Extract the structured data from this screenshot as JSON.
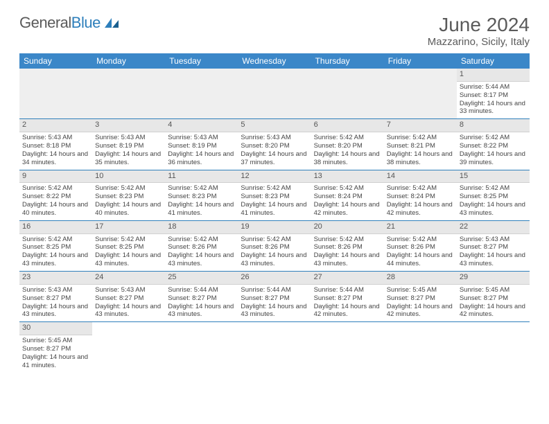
{
  "logo": {
    "text_general": "General",
    "text_blue": "Blue"
  },
  "title": "June 2024",
  "location": "Mazzarino, Sicily, Italy",
  "weekdays": [
    "Sunday",
    "Monday",
    "Tuesday",
    "Wednesday",
    "Thursday",
    "Friday",
    "Saturday"
  ],
  "colors": {
    "header_bg": "#3b87c8",
    "header_fg": "#ffffff",
    "accent": "#2e7fbb",
    "daynum_bg": "#e7e7e7",
    "text": "#444"
  },
  "first_weekday_index": 6,
  "days": [
    {
      "n": 1,
      "sunrise": "5:44 AM",
      "sunset": "8:17 PM",
      "daylight": "14 hours and 33 minutes."
    },
    {
      "n": 2,
      "sunrise": "5:43 AM",
      "sunset": "8:18 PM",
      "daylight": "14 hours and 34 minutes."
    },
    {
      "n": 3,
      "sunrise": "5:43 AM",
      "sunset": "8:19 PM",
      "daylight": "14 hours and 35 minutes."
    },
    {
      "n": 4,
      "sunrise": "5:43 AM",
      "sunset": "8:19 PM",
      "daylight": "14 hours and 36 minutes."
    },
    {
      "n": 5,
      "sunrise": "5:43 AM",
      "sunset": "8:20 PM",
      "daylight": "14 hours and 37 minutes."
    },
    {
      "n": 6,
      "sunrise": "5:42 AM",
      "sunset": "8:20 PM",
      "daylight": "14 hours and 38 minutes."
    },
    {
      "n": 7,
      "sunrise": "5:42 AM",
      "sunset": "8:21 PM",
      "daylight": "14 hours and 38 minutes."
    },
    {
      "n": 8,
      "sunrise": "5:42 AM",
      "sunset": "8:22 PM",
      "daylight": "14 hours and 39 minutes."
    },
    {
      "n": 9,
      "sunrise": "5:42 AM",
      "sunset": "8:22 PM",
      "daylight": "14 hours and 40 minutes."
    },
    {
      "n": 10,
      "sunrise": "5:42 AM",
      "sunset": "8:23 PM",
      "daylight": "14 hours and 40 minutes."
    },
    {
      "n": 11,
      "sunrise": "5:42 AM",
      "sunset": "8:23 PM",
      "daylight": "14 hours and 41 minutes."
    },
    {
      "n": 12,
      "sunrise": "5:42 AM",
      "sunset": "8:23 PM",
      "daylight": "14 hours and 41 minutes."
    },
    {
      "n": 13,
      "sunrise": "5:42 AM",
      "sunset": "8:24 PM",
      "daylight": "14 hours and 42 minutes."
    },
    {
      "n": 14,
      "sunrise": "5:42 AM",
      "sunset": "8:24 PM",
      "daylight": "14 hours and 42 minutes."
    },
    {
      "n": 15,
      "sunrise": "5:42 AM",
      "sunset": "8:25 PM",
      "daylight": "14 hours and 43 minutes."
    },
    {
      "n": 16,
      "sunrise": "5:42 AM",
      "sunset": "8:25 PM",
      "daylight": "14 hours and 43 minutes."
    },
    {
      "n": 17,
      "sunrise": "5:42 AM",
      "sunset": "8:25 PM",
      "daylight": "14 hours and 43 minutes."
    },
    {
      "n": 18,
      "sunrise": "5:42 AM",
      "sunset": "8:26 PM",
      "daylight": "14 hours and 43 minutes."
    },
    {
      "n": 19,
      "sunrise": "5:42 AM",
      "sunset": "8:26 PM",
      "daylight": "14 hours and 43 minutes."
    },
    {
      "n": 20,
      "sunrise": "5:42 AM",
      "sunset": "8:26 PM",
      "daylight": "14 hours and 43 minutes."
    },
    {
      "n": 21,
      "sunrise": "5:42 AM",
      "sunset": "8:26 PM",
      "daylight": "14 hours and 44 minutes."
    },
    {
      "n": 22,
      "sunrise": "5:43 AM",
      "sunset": "8:27 PM",
      "daylight": "14 hours and 43 minutes."
    },
    {
      "n": 23,
      "sunrise": "5:43 AM",
      "sunset": "8:27 PM",
      "daylight": "14 hours and 43 minutes."
    },
    {
      "n": 24,
      "sunrise": "5:43 AM",
      "sunset": "8:27 PM",
      "daylight": "14 hours and 43 minutes."
    },
    {
      "n": 25,
      "sunrise": "5:44 AM",
      "sunset": "8:27 PM",
      "daylight": "14 hours and 43 minutes."
    },
    {
      "n": 26,
      "sunrise": "5:44 AM",
      "sunset": "8:27 PM",
      "daylight": "14 hours and 43 minutes."
    },
    {
      "n": 27,
      "sunrise": "5:44 AM",
      "sunset": "8:27 PM",
      "daylight": "14 hours and 42 minutes."
    },
    {
      "n": 28,
      "sunrise": "5:45 AM",
      "sunset": "8:27 PM",
      "daylight": "14 hours and 42 minutes."
    },
    {
      "n": 29,
      "sunrise": "5:45 AM",
      "sunset": "8:27 PM",
      "daylight": "14 hours and 42 minutes."
    },
    {
      "n": 30,
      "sunrise": "5:45 AM",
      "sunset": "8:27 PM",
      "daylight": "14 hours and 41 minutes."
    }
  ],
  "labels": {
    "sunrise": "Sunrise:",
    "sunset": "Sunset:",
    "daylight": "Daylight:"
  }
}
